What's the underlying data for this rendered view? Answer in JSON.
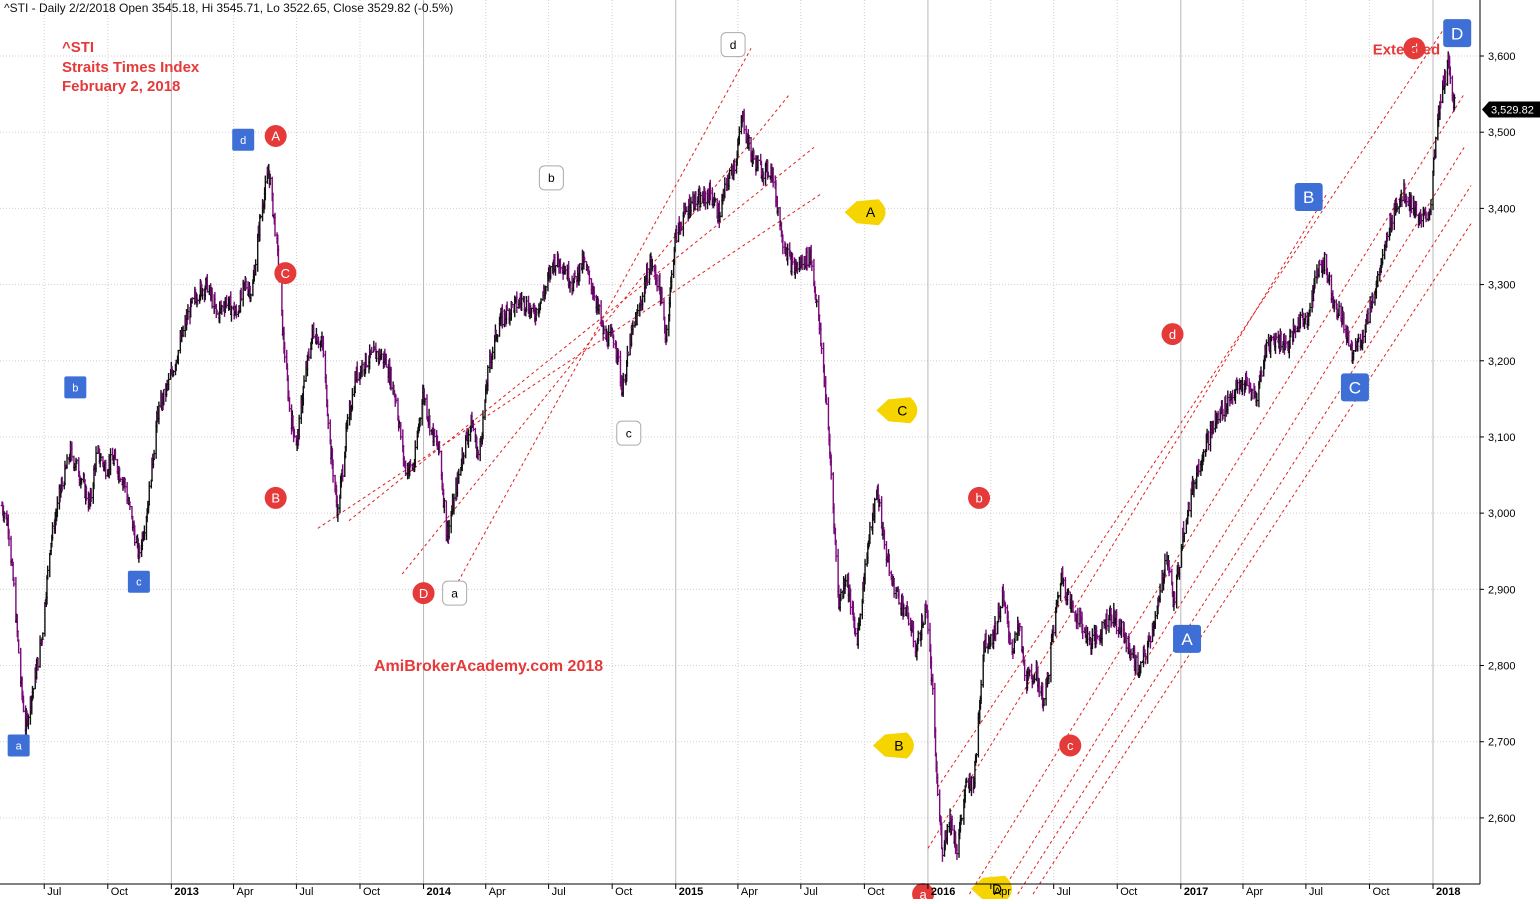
{
  "header": {
    "text": "^STI - Daily 2/2/2018 Open 3545.18, Hi 3545.71, Lo 3522.65, Close 3529.82 (-0.5%)"
  },
  "legend": {
    "symbol": "^STI",
    "name": "Straits Times Index",
    "date": "February 2, 2018"
  },
  "watermark": "AmiBrokerAcademy.com 2018",
  "colors": {
    "up_bar": "#111111",
    "down_bar": "#7a0a7a",
    "channel": "#e02020",
    "grid": "#d0d0d0",
    "red_marker": "#e53a3a",
    "blue_marker": "#3d6fd6",
    "yellow_marker": "#f5d400",
    "white_marker": "#ffffff"
  },
  "chart_data": {
    "type": "ohlc",
    "title": "^STI - Daily 2/2/2018",
    "last_close": 3529.82,
    "last_close_label": "3,529.82",
    "ylim": [
      2500,
      3640
    ],
    "y_ticks": [
      {
        "value": 2600,
        "label": "2,600"
      },
      {
        "value": 2700,
        "label": "2,700"
      },
      {
        "value": 2800,
        "label": "2,800"
      },
      {
        "value": 2900,
        "label": "2,900"
      },
      {
        "value": 3000,
        "label": "3,000"
      },
      {
        "value": 3100,
        "label": "3,100"
      },
      {
        "value": 3200,
        "label": "3,200"
      },
      {
        "value": 3300,
        "label": "3,300"
      },
      {
        "value": 3400,
        "label": "3,400"
      },
      {
        "value": 3500,
        "label": "3,500"
      },
      {
        "value": 3600,
        "label": "3,600"
      }
    ],
    "x_ticks": [
      {
        "date": "2012-07-01",
        "label": "Jul",
        "major": false
      },
      {
        "date": "2012-10-01",
        "label": "Oct",
        "major": false
      },
      {
        "date": "2013-01-01",
        "label": "2013",
        "major": true
      },
      {
        "date": "2013-04-01",
        "label": "Apr",
        "major": false
      },
      {
        "date": "2013-07-01",
        "label": "Jul",
        "major": false
      },
      {
        "date": "2013-10-01",
        "label": "Oct",
        "major": false
      },
      {
        "date": "2014-01-01",
        "label": "2014",
        "major": true
      },
      {
        "date": "2014-04-01",
        "label": "Apr",
        "major": false
      },
      {
        "date": "2014-07-01",
        "label": "Jul",
        "major": false
      },
      {
        "date": "2014-10-01",
        "label": "Oct",
        "major": false
      },
      {
        "date": "2015-01-01",
        "label": "2015",
        "major": true
      },
      {
        "date": "2015-04-01",
        "label": "Apr",
        "major": false
      },
      {
        "date": "2015-07-01",
        "label": "Jul",
        "major": false
      },
      {
        "date": "2015-10-01",
        "label": "Oct",
        "major": false
      },
      {
        "date": "2016-01-01",
        "label": "2016",
        "major": true
      },
      {
        "date": "2016-04-01",
        "label": "Apr",
        "major": false
      },
      {
        "date": "2016-07-01",
        "label": "Jul",
        "major": false
      },
      {
        "date": "2016-10-01",
        "label": "Oct",
        "major": false
      },
      {
        "date": "2017-01-01",
        "label": "2017",
        "major": true
      },
      {
        "date": "2017-04-01",
        "label": "Apr",
        "major": false
      },
      {
        "date": "2017-07-01",
        "label": "Jul",
        "major": false
      },
      {
        "date": "2017-10-01",
        "label": "Oct",
        "major": false
      },
      {
        "date": "2018-01-01",
        "label": "2018",
        "major": true
      }
    ],
    "series": [
      {
        "points": [
          [
            "2012-05-01",
            3010
          ],
          [
            "2012-05-10",
            2985
          ],
          [
            "2012-05-20",
            2880
          ],
          [
            "2012-05-28",
            2780
          ],
          [
            "2012-06-04",
            2720
          ],
          [
            "2012-06-15",
            2770
          ],
          [
            "2012-06-28",
            2840
          ],
          [
            "2012-07-10",
            2960
          ],
          [
            "2012-07-25",
            3030
          ],
          [
            "2012-08-08",
            3080
          ],
          [
            "2012-08-22",
            3050
          ],
          [
            "2012-09-05",
            3010
          ],
          [
            "2012-09-15",
            3080
          ],
          [
            "2012-09-28",
            3060
          ],
          [
            "2012-10-10",
            3070
          ],
          [
            "2012-10-25",
            3040
          ],
          [
            "2012-11-05",
            2990
          ],
          [
            "2012-11-15",
            2945
          ],
          [
            "2012-11-28",
            3010
          ],
          [
            "2012-12-12",
            3130
          ],
          [
            "2012-12-28",
            3170
          ],
          [
            "2013-01-10",
            3210
          ],
          [
            "2013-01-25",
            3260
          ],
          [
            "2013-02-08",
            3290
          ],
          [
            "2013-02-22",
            3300
          ],
          [
            "2013-03-08",
            3260
          ],
          [
            "2013-03-22",
            3280
          ],
          [
            "2013-04-05",
            3260
          ],
          [
            "2013-04-18",
            3300
          ],
          [
            "2013-04-28",
            3290
          ],
          [
            "2013-05-10",
            3390
          ],
          [
            "2013-05-22",
            3450
          ],
          [
            "2013-06-03",
            3350
          ],
          [
            "2013-06-12",
            3230
          ],
          [
            "2013-06-22",
            3130
          ],
          [
            "2013-07-02",
            3090
          ],
          [
            "2013-07-12",
            3170
          ],
          [
            "2013-07-25",
            3240
          ],
          [
            "2013-08-08",
            3220
          ],
          [
            "2013-08-20",
            3080
          ],
          [
            "2013-08-30",
            3000
          ],
          [
            "2013-09-12",
            3110
          ],
          [
            "2013-09-25",
            3180
          ],
          [
            "2013-10-10",
            3200
          ],
          [
            "2013-10-25",
            3210
          ],
          [
            "2013-11-08",
            3200
          ],
          [
            "2013-11-22",
            3150
          ],
          [
            "2013-12-05",
            3060
          ],
          [
            "2013-12-18",
            3060
          ],
          [
            "2013-12-31",
            3160
          ],
          [
            "2014-01-12",
            3110
          ],
          [
            "2014-01-24",
            3080
          ],
          [
            "2014-02-04",
            2970
          ],
          [
            "2014-02-15",
            3020
          ],
          [
            "2014-03-01",
            3090
          ],
          [
            "2014-03-12",
            3120
          ],
          [
            "2014-03-22",
            3070
          ],
          [
            "2014-04-05",
            3190
          ],
          [
            "2014-04-20",
            3250
          ],
          [
            "2014-05-08",
            3270
          ],
          [
            "2014-05-25",
            3280
          ],
          [
            "2014-06-10",
            3260
          ],
          [
            "2014-06-25",
            3290
          ],
          [
            "2014-07-08",
            3330
          ],
          [
            "2014-07-20",
            3330
          ],
          [
            "2014-08-05",
            3300
          ],
          [
            "2014-08-20",
            3330
          ],
          [
            "2014-09-05",
            3290
          ],
          [
            "2014-09-20",
            3230
          ],
          [
            "2014-10-05",
            3230
          ],
          [
            "2014-10-16",
            3160
          ],
          [
            "2014-10-28",
            3230
          ],
          [
            "2014-11-10",
            3270
          ],
          [
            "2014-11-25",
            3330
          ],
          [
            "2014-12-08",
            3300
          ],
          [
            "2014-12-18",
            3230
          ],
          [
            "2014-12-31",
            3360
          ],
          [
            "2015-01-12",
            3390
          ],
          [
            "2015-01-25",
            3410
          ],
          [
            "2015-02-08",
            3410
          ],
          [
            "2015-02-20",
            3420
          ],
          [
            "2015-03-05",
            3390
          ],
          [
            "2015-03-15",
            3430
          ],
          [
            "2015-03-28",
            3460
          ],
          [
            "2015-04-08",
            3520
          ],
          [
            "2015-04-20",
            3470
          ],
          [
            "2015-05-05",
            3450
          ],
          [
            "2015-05-20",
            3450
          ],
          [
            "2015-06-05",
            3360
          ],
          [
            "2015-06-20",
            3320
          ],
          [
            "2015-07-05",
            3330
          ],
          [
            "2015-07-15",
            3340
          ],
          [
            "2015-07-25",
            3270
          ],
          [
            "2015-08-05",
            3170
          ],
          [
            "2015-08-15",
            3040
          ],
          [
            "2015-08-25",
            2880
          ],
          [
            "2015-09-05",
            2920
          ],
          [
            "2015-09-20",
            2830
          ],
          [
            "2015-10-05",
            2950
          ],
          [
            "2015-10-20",
            3030
          ],
          [
            "2015-10-30",
            2960
          ],
          [
            "2015-11-10",
            2910
          ],
          [
            "2015-11-25",
            2880
          ],
          [
            "2015-12-05",
            2860
          ],
          [
            "2015-12-15",
            2820
          ],
          [
            "2015-12-30",
            2880
          ],
          [
            "2016-01-08",
            2760
          ],
          [
            "2016-01-15",
            2630
          ],
          [
            "2016-01-22",
            2560
          ],
          [
            "2016-02-02",
            2600
          ],
          [
            "2016-02-12",
            2560
          ],
          [
            "2016-02-25",
            2640
          ],
          [
            "2016-03-08",
            2650
          ],
          [
            "2016-03-22",
            2830
          ],
          [
            "2016-04-05",
            2840
          ],
          [
            "2016-04-18",
            2890
          ],
          [
            "2016-05-02",
            2820
          ],
          [
            "2016-05-12",
            2850
          ],
          [
            "2016-05-22",
            2780
          ],
          [
            "2016-06-05",
            2790
          ],
          [
            "2016-06-18",
            2750
          ],
          [
            "2016-06-28",
            2830
          ],
          [
            "2016-07-12",
            2920
          ],
          [
            "2016-07-25",
            2880
          ],
          [
            "2016-08-08",
            2860
          ],
          [
            "2016-08-22",
            2830
          ],
          [
            "2016-09-05",
            2840
          ],
          [
            "2016-09-20",
            2870
          ],
          [
            "2016-10-05",
            2850
          ],
          [
            "2016-10-20",
            2820
          ],
          [
            "2016-11-02",
            2790
          ],
          [
            "2016-11-15",
            2830
          ],
          [
            "2016-11-30",
            2880
          ],
          [
            "2016-12-12",
            2950
          ],
          [
            "2016-12-22",
            2880
          ],
          [
            "2017-01-05",
            2980
          ],
          [
            "2017-01-20",
            3040
          ],
          [
            "2017-02-05",
            3090
          ],
          [
            "2017-02-20",
            3120
          ],
          [
            "2017-03-05",
            3140
          ],
          [
            "2017-03-20",
            3160
          ],
          [
            "2017-04-05",
            3170
          ],
          [
            "2017-04-20",
            3150
          ],
          [
            "2017-05-05",
            3220
          ],
          [
            "2017-05-20",
            3230
          ],
          [
            "2017-06-05",
            3220
          ],
          [
            "2017-06-20",
            3250
          ],
          [
            "2017-07-05",
            3260
          ],
          [
            "2017-07-18",
            3320
          ],
          [
            "2017-07-28",
            3330
          ],
          [
            "2017-08-10",
            3280
          ],
          [
            "2017-08-25",
            3250
          ],
          [
            "2017-09-05",
            3210
          ],
          [
            "2017-09-20",
            3230
          ],
          [
            "2017-10-05",
            3280
          ],
          [
            "2017-10-20",
            3330
          ],
          [
            "2017-11-05",
            3400
          ],
          [
            "2017-11-20",
            3420
          ],
          [
            "2017-12-05",
            3400
          ],
          [
            "2017-12-15",
            3380
          ],
          [
            "2017-12-28",
            3400
          ],
          [
            "2018-01-05",
            3490
          ],
          [
            "2018-01-15",
            3560
          ],
          [
            "2018-01-24",
            3590
          ],
          [
            "2018-02-02",
            3530
          ]
        ]
      }
    ],
    "channels": [
      {
        "from": [
          "2013-08-01",
          2980
        ],
        "to": [
          "2015-08-01",
          3420
        ]
      },
      {
        "from": [
          "2013-09-15",
          2990
        ],
        "to": [
          "2015-07-20",
          3480
        ]
      },
      {
        "from": [
          "2013-12-01",
          2920
        ],
        "to": [
          "2015-06-15",
          3550
        ]
      },
      {
        "from": [
          "2014-02-20",
          2910
        ],
        "to": [
          "2015-04-20",
          3610
        ]
      },
      {
        "from": [
          "2016-01-01",
          2560
        ],
        "to": [
          "2017-08-01",
          3420
        ]
      },
      {
        "from": [
          "2016-03-01",
          2500
        ],
        "to": [
          "2018-02-15",
          3550
        ]
      },
      {
        "from": [
          "2016-04-15",
          2500
        ],
        "to": [
          "2018-02-15",
          3480
        ]
      },
      {
        "from": [
          "2016-05-10",
          2500
        ],
        "to": [
          "2018-02-25",
          3430
        ]
      },
      {
        "from": [
          "2016-06-01",
          2500
        ],
        "to": [
          "2018-02-25",
          3380
        ]
      },
      {
        "from": [
          "2016-01-15",
          2640
        ],
        "to": [
          "2018-01-20",
          3640
        ]
      }
    ],
    "markers": [
      {
        "label": "A",
        "style": "red-circle",
        "date": "2013-06-01",
        "y": 3495
      },
      {
        "label": "B",
        "style": "red-circle",
        "date": "2013-06-01",
        "y": 3020
      },
      {
        "label": "C",
        "style": "red-circle",
        "date": "2013-06-15",
        "y": 3315
      },
      {
        "label": "D",
        "style": "red-circle",
        "date": "2014-01-01",
        "y": 2895
      },
      {
        "label": "a",
        "style": "red-circle",
        "date": "2015-12-25",
        "y": 2500
      },
      {
        "label": "b",
        "style": "red-circle",
        "date": "2016-03-15",
        "y": 3020
      },
      {
        "label": "c",
        "style": "red-circle",
        "date": "2016-07-25",
        "y": 2695
      },
      {
        "label": "d",
        "style": "red-circle",
        "date": "2016-12-20",
        "y": 3235
      },
      {
        "label": "d",
        "style": "red-circle",
        "date": "2017-12-05",
        "y": 3610
      },
      {
        "label": "a",
        "style": "blue-square",
        "date": "2012-05-25",
        "y": 2695
      },
      {
        "label": "b",
        "style": "blue-square",
        "date": "2012-08-15",
        "y": 3165
      },
      {
        "label": "c",
        "style": "blue-square",
        "date": "2012-11-15",
        "y": 2910
      },
      {
        "label": "d",
        "style": "blue-square",
        "date": "2013-04-15",
        "y": 3490
      },
      {
        "label": "A",
        "style": "blue-square-large",
        "date": "2017-01-10",
        "y": 2835
      },
      {
        "label": "B",
        "style": "blue-square-large",
        "date": "2017-07-05",
        "y": 3415
      },
      {
        "label": "C",
        "style": "blue-square-large",
        "date": "2017-09-10",
        "y": 3165
      },
      {
        "label": "D",
        "style": "blue-square-large",
        "date": "2018-02-05",
        "y": 3630
      },
      {
        "label": "a",
        "style": "white-square",
        "date": "2014-02-15",
        "y": 2895
      },
      {
        "label": "b",
        "style": "white-square",
        "date": "2014-07-05",
        "y": 3440
      },
      {
        "label": "c",
        "style": "white-square",
        "date": "2014-10-25",
        "y": 3105
      },
      {
        "label": "d",
        "style": "white-square",
        "date": "2015-03-25",
        "y": 3615
      },
      {
        "label": "A",
        "style": "yellow-bubble",
        "date": "2015-10-10",
        "y": 3395
      },
      {
        "label": "B",
        "style": "yellow-bubble",
        "date": "2015-11-20",
        "y": 2695
      },
      {
        "label": "C",
        "style": "yellow-bubble",
        "date": "2015-11-25",
        "y": 3135
      },
      {
        "label": "D",
        "style": "yellow-bubble",
        "date": "2016-04-10",
        "y": 2507
      }
    ],
    "annotations": [
      {
        "text": "Extended",
        "date": "2018-01-15",
        "y": 3610
      }
    ]
  }
}
